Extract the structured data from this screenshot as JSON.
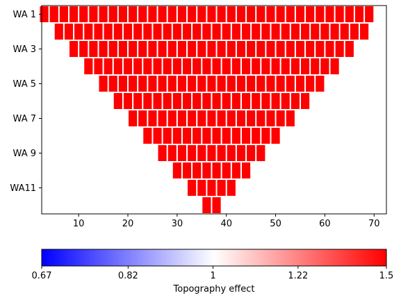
{
  "chart_data": {
    "type": "heatmap",
    "description_of_layout": "Inverted triangular pseudosection; each row (WA level) has cells at positions centered and shrinking toward bottom.",
    "rows": [
      {
        "label": "WA 1",
        "x_start": 3,
        "count": 34
      },
      {
        "label": "",
        "x_start": 6,
        "count": 32
      },
      {
        "label": "WA 3",
        "x_start": 9,
        "count": 29
      },
      {
        "label": "",
        "x_start": 12,
        "count": 26
      },
      {
        "label": "WA 5",
        "x_start": 15,
        "count": 23
      },
      {
        "label": "",
        "x_start": 18,
        "count": 20
      },
      {
        "label": "WA 7",
        "x_start": 21,
        "count": 17
      },
      {
        "label": "",
        "x_start": 24,
        "count": 14
      },
      {
        "label": "WA 9",
        "x_start": 27,
        "count": 11
      },
      {
        "label": "",
        "x_start": 30,
        "count": 8
      },
      {
        "label": "WA11",
        "x_start": 33,
        "count": 5
      },
      {
        "label": "",
        "x_start": 36,
        "count": 2
      }
    ],
    "cell_value": 1.5,
    "x_ticks": [
      10,
      20,
      30,
      40,
      50,
      60,
      70
    ],
    "xlim": [
      2.5,
      72.5
    ],
    "y_tick_labels": [
      "WA 1",
      "WA 3",
      "WA 5",
      "WA 7",
      "WA 9",
      "WA11"
    ],
    "colorbar": {
      "label": "Topography effect",
      "ticks": [
        "0.67",
        "0.82",
        "1",
        "1.22",
        "1.5"
      ],
      "min": 0.67,
      "max": 1.5,
      "colormap": "bwr-log",
      "colors": [
        "#0000ff",
        "#ffffff",
        "#ff0000"
      ]
    }
  },
  "colors": {
    "cell_fill": "#ff0000",
    "cell_stroke": "#ffffff"
  }
}
